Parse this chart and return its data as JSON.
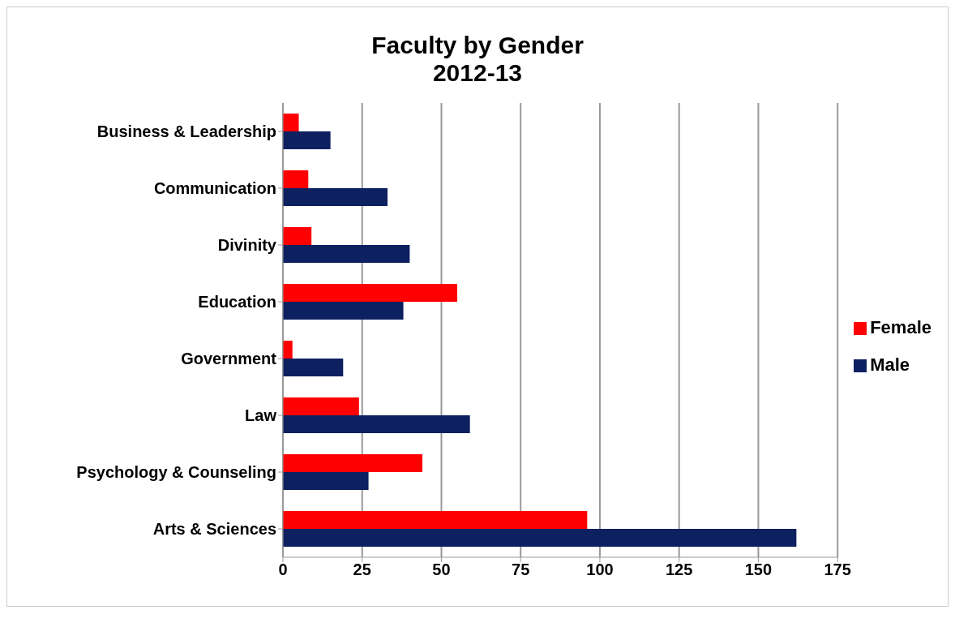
{
  "chart_data": {
    "type": "bar",
    "orientation": "horizontal",
    "title": "Faculty by Gender",
    "subtitle": "2012-13",
    "categories": [
      "Business & Leadership",
      "Communication",
      "Divinity",
      "Education",
      "Government",
      "Law",
      "Psychology & Counseling",
      "Arts & Sciences"
    ],
    "series": [
      {
        "name": "Female",
        "color": "#ff0000",
        "values": [
          5,
          8,
          9,
          55,
          3,
          24,
          44,
          96
        ]
      },
      {
        "name": "Male",
        "color": "#0d2060",
        "values": [
          15,
          33,
          40,
          38,
          19,
          59,
          27,
          162
        ]
      }
    ],
    "xlim": [
      0,
      175
    ],
    "xticks": [
      0,
      25,
      50,
      75,
      100,
      125,
      150,
      175
    ],
    "grid": "x",
    "legend": "right"
  }
}
